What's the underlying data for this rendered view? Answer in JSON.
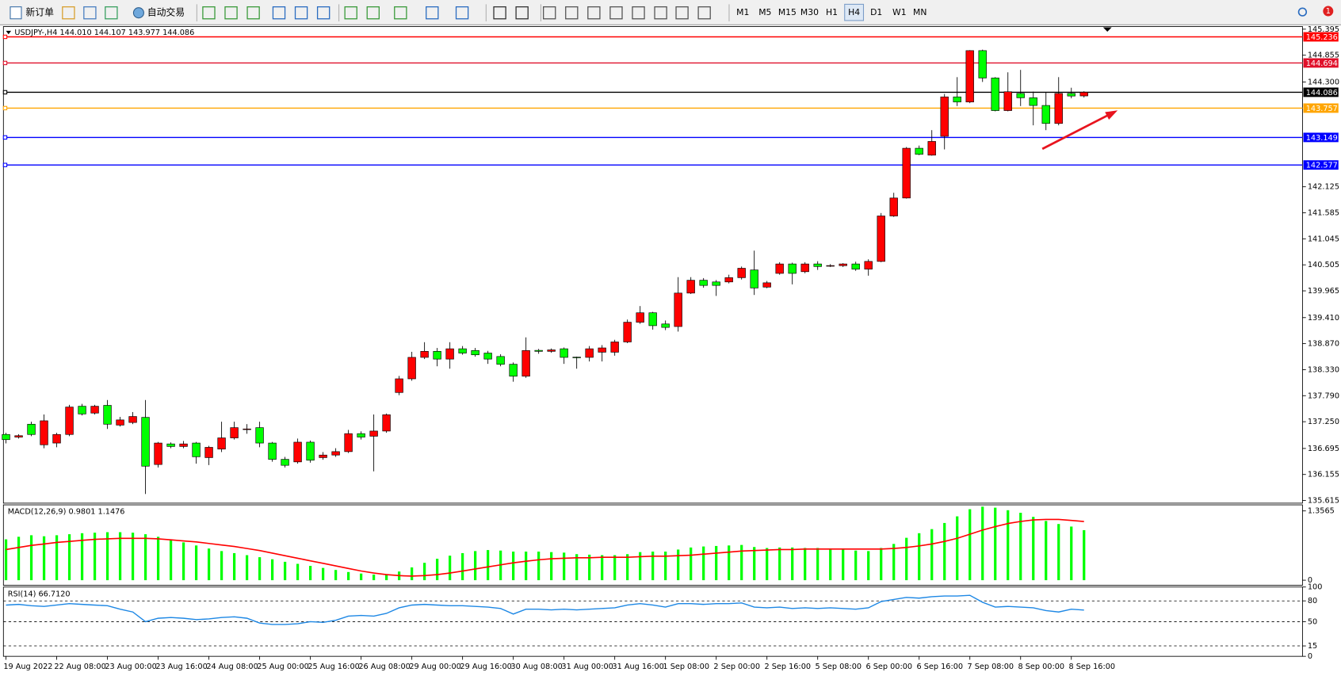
{
  "toolbar": {
    "new_order": "新订单",
    "auto_trading": "自动交易",
    "timeframes": [
      "M1",
      "M5",
      "M15",
      "M30",
      "H1",
      "H4",
      "D1",
      "W1",
      "MN"
    ],
    "active_timeframe": "H4",
    "notification_count": 1
  },
  "chart_data": [
    {
      "type": "candlestick",
      "title": "USDJPY-,H4  144.010 144.107 143.977 144.086",
      "x": [
        "19 Aug 2022",
        null,
        null,
        null,
        "22 Aug 08:00",
        null,
        null,
        null,
        "23 Aug 00:00",
        null,
        null,
        null,
        "23 Aug 16:00",
        null,
        null,
        null,
        "24 Aug 08:00",
        null,
        null,
        null,
        "25 Aug 00:00",
        null,
        null,
        null,
        "25 Aug 16:00",
        null,
        null,
        null,
        "26 Aug 08:00",
        null,
        null,
        null,
        "29 Aug 00:00",
        null,
        null,
        null,
        "29 Aug 16:00",
        null,
        null,
        null,
        "30 Aug 08:00",
        null,
        null,
        null,
        "31 Aug 00:00",
        null,
        null,
        null,
        "31 Aug 16:00",
        null,
        null,
        null,
        "1 Sep 08:00",
        null,
        null,
        null,
        "2 Sep 00:00",
        null,
        null,
        null,
        "2 Sep 16:00",
        null,
        null,
        null,
        "5 Sep 08:00",
        null,
        null,
        null,
        "6 Sep 00:00",
        null,
        null,
        null,
        "6 Sep 16:00",
        null,
        null,
        null,
        "7 Sep 08:00",
        null,
        null,
        null,
        "8 Sep 00:00",
        null,
        null,
        null,
        "8 Sep 16:00",
        null
      ],
      "open": [
        136.985,
        136.93,
        137.198,
        136.771,
        136.807,
        136.985,
        137.571,
        137.429,
        137.589,
        137.18,
        137.234,
        137.34,
        136.362,
        136.789,
        136.736,
        136.807,
        136.505,
        136.682,
        136.914,
        137.09,
        137.127,
        136.807,
        136.469,
        136.416,
        136.825,
        136.505,
        136.558,
        136.629,
        137.002,
        136.949,
        137.056,
        137.856,
        138.14,
        138.585,
        138.71,
        138.549,
        138.763,
        138.727,
        138.674,
        138.603,
        138.442,
        138.194,
        138.73,
        138.71,
        138.763,
        138.59,
        138.585,
        138.692,
        138.692,
        138.905,
        139.314,
        139.51,
        139.278,
        139.225,
        139.919,
        140.185,
        140.15,
        140.15,
        140.239,
        140.399,
        140.043,
        140.328,
        140.523,
        140.363,
        140.523,
        140.48,
        140.488,
        140.523,
        140.416,
        140.576,
        141.519,
        141.892,
        142.924,
        142.781,
        143.172,
        143.99,
        143.884,
        144.95,
        144.382,
        143.706,
        144.061,
        143.972,
        143.812,
        143.439,
        144.061,
        144.01
      ],
      "high": [
        137.02,
        136.99,
        137.25,
        137.4,
        137.02,
        137.6,
        137.62,
        137.6,
        137.7,
        137.35,
        137.45,
        137.7,
        136.83,
        136.82,
        136.85,
        136.83,
        136.75,
        137.25,
        137.25,
        137.2,
        137.25,
        136.83,
        136.52,
        136.9,
        136.86,
        136.62,
        136.7,
        137.08,
        137.05,
        137.4,
        137.42,
        138.2,
        138.7,
        138.9,
        138.78,
        138.9,
        138.82,
        138.78,
        138.72,
        138.65,
        138.48,
        139.0,
        138.76,
        138.77,
        138.79,
        138.6,
        138.82,
        138.84,
        138.95,
        139.37,
        139.65,
        139.53,
        139.35,
        140.25,
        140.25,
        140.23,
        140.19,
        140.3,
        140.47,
        140.8,
        140.17,
        140.56,
        140.55,
        140.56,
        140.58,
        140.52,
        140.54,
        140.57,
        140.62,
        141.58,
        142.0,
        142.95,
        142.98,
        143.3,
        144.05,
        144.4,
        144.96,
        144.97,
        144.4,
        144.5,
        144.55,
        144.1,
        144.08,
        144.4,
        144.18,
        144.107
      ],
      "low": [
        136.8,
        136.9,
        136.95,
        136.7,
        136.72,
        136.95,
        137.38,
        137.4,
        137.1,
        137.15,
        137.2,
        135.75,
        136.3,
        136.7,
        136.7,
        136.38,
        136.35,
        136.62,
        136.88,
        137.0,
        136.72,
        136.42,
        136.3,
        136.38,
        136.4,
        136.46,
        136.52,
        136.6,
        136.88,
        136.22,
        137.02,
        137.8,
        138.1,
        138.55,
        138.4,
        138.35,
        138.64,
        138.6,
        138.45,
        138.4,
        138.08,
        138.16,
        138.66,
        138.68,
        138.45,
        138.35,
        138.5,
        138.5,
        138.62,
        138.88,
        139.28,
        139.16,
        139.15,
        139.12,
        139.9,
        140.03,
        139.86,
        140.12,
        140.2,
        139.88,
        140.02,
        140.3,
        140.1,
        140.33,
        140.4,
        140.46,
        140.46,
        140.38,
        140.28,
        140.56,
        141.5,
        141.88,
        142.78,
        142.77,
        142.9,
        143.8,
        143.86,
        144.3,
        143.69,
        143.69,
        143.8,
        143.4,
        143.3,
        143.4,
        143.96,
        143.977
      ],
      "close": [
        136.878,
        136.96,
        136.985,
        137.269,
        136.985,
        137.554,
        137.411,
        137.571,
        137.198,
        137.287,
        137.358,
        136.327,
        136.807,
        136.736,
        136.789,
        136.523,
        136.718,
        136.914,
        137.127,
        137.1,
        136.807,
        136.469,
        136.345,
        136.825,
        136.451,
        136.558,
        136.629,
        137.002,
        136.931,
        137.056,
        137.394,
        138.14,
        138.585,
        138.71,
        138.549,
        138.763,
        138.674,
        138.638,
        138.549,
        138.442,
        138.194,
        138.727,
        138.71,
        138.74,
        138.585,
        138.58,
        138.763,
        138.781,
        138.905,
        139.314,
        139.51,
        139.243,
        139.207,
        139.919,
        140.185,
        140.078,
        140.078,
        140.239,
        140.434,
        140.025,
        140.132,
        140.523,
        140.328,
        140.523,
        140.47,
        140.49,
        140.523,
        140.416,
        140.576,
        141.519,
        141.892,
        142.924,
        142.799,
        143.066,
        143.99,
        143.884,
        144.95,
        144.382,
        143.706,
        144.097,
        143.972,
        143.812,
        143.439,
        144.061,
        144.008,
        144.086
      ],
      "up_color": "#ff0000",
      "down_color": "#00ff00",
      "ylim": [
        135.56,
        145.45
      ],
      "yticks": [
        145.395,
        144.855,
        {
          "value": 144.3,
          "label": "144.300"
        },
        142.125,
        141.585,
        141.045,
        140.505,
        139.965,
        {
          "value": 139.41,
          "label": "139.410"
        },
        {
          "value": 138.87,
          "label": "138.870"
        },
        {
          "value": 138.33,
          "label": "138.330"
        },
        {
          "value": 137.79,
          "label": "137.790"
        },
        {
          "value": 137.25,
          "label": "137.250"
        },
        136.695,
        136.155,
        135.615
      ],
      "levels": [
        {
          "value": 145.236,
          "color": "#ff0000"
        },
        {
          "value": 144.694,
          "color": "#e0102a"
        },
        {
          "value": 144.086,
          "color": "#000000"
        },
        {
          "value": 143.757,
          "color": "#ffa500"
        },
        {
          "value": 143.149,
          "color": "#0000ff"
        },
        {
          "value": 142.577,
          "color": "#0000ff"
        }
      ]
    },
    {
      "type": "macd",
      "title": "MACD(12,26,9) 0.9801 1.1476",
      "histogram": {
        "color": "#00ff00",
        "values": [
          0.8,
          0.85,
          0.88,
          0.86,
          0.88,
          0.9,
          0.92,
          0.93,
          0.94,
          0.94,
          0.93,
          0.9,
          0.85,
          0.8,
          0.74,
          0.68,
          0.62,
          0.57,
          0.53,
          0.49,
          0.45,
          0.41,
          0.36,
          0.32,
          0.28,
          0.24,
          0.2,
          0.16,
          0.13,
          0.11,
          0.12,
          0.17,
          0.25,
          0.34,
          0.42,
          0.48,
          0.53,
          0.57,
          0.59,
          0.58,
          0.56,
          0.56,
          0.56,
          0.55,
          0.54,
          0.51,
          0.5,
          0.49,
          0.49,
          0.51,
          0.55,
          0.56,
          0.56,
          0.6,
          0.64,
          0.66,
          0.67,
          0.68,
          0.69,
          0.65,
          0.63,
          0.64,
          0.64,
          0.63,
          0.63,
          0.62,
          0.6,
          0.58,
          0.57,
          0.63,
          0.71,
          0.83,
          0.92,
          1.0,
          1.12,
          1.25,
          1.39,
          1.44,
          1.42,
          1.37,
          1.32,
          1.24,
          1.16,
          1.1,
          1.05,
          0.9801
        ]
      },
      "signal": {
        "color": "#ff0000",
        "values": [
          0.6,
          0.64,
          0.68,
          0.71,
          0.74,
          0.76,
          0.78,
          0.8,
          0.81,
          0.82,
          0.82,
          0.82,
          0.81,
          0.79,
          0.77,
          0.75,
          0.72,
          0.69,
          0.66,
          0.62,
          0.58,
          0.53,
          0.48,
          0.43,
          0.38,
          0.33,
          0.28,
          0.23,
          0.18,
          0.14,
          0.11,
          0.09,
          0.08,
          0.09,
          0.11,
          0.14,
          0.18,
          0.22,
          0.26,
          0.3,
          0.34,
          0.37,
          0.4,
          0.42,
          0.43,
          0.44,
          0.44,
          0.45,
          0.45,
          0.45,
          0.46,
          0.47,
          0.47,
          0.48,
          0.49,
          0.51,
          0.53,
          0.55,
          0.57,
          0.58,
          0.59,
          0.6,
          0.6,
          0.61,
          0.61,
          0.61,
          0.61,
          0.61,
          0.61,
          0.61,
          0.62,
          0.64,
          0.67,
          0.71,
          0.76,
          0.82,
          0.9,
          0.98,
          1.05,
          1.11,
          1.15,
          1.18,
          1.19,
          1.19,
          1.17,
          1.1476
        ]
      },
      "ylim": [
        -0.1,
        1.475
      ],
      "yticks": [
        1.3565,
        0
      ]
    },
    {
      "type": "line",
      "title": "RSI(14) 66.7120",
      "color": "#1e88e5",
      "values": [
        74,
        75,
        73,
        72,
        74,
        76,
        75,
        74,
        73,
        68,
        64,
        50,
        55,
        56,
        55,
        53,
        54,
        56,
        57,
        55,
        48,
        46,
        46,
        47,
        50,
        49,
        52,
        58,
        59,
        58,
        62,
        70,
        74,
        75,
        74,
        73,
        73,
        72,
        71,
        69,
        61,
        68,
        68,
        67,
        68,
        67,
        68,
        69,
        70,
        74,
        76,
        74,
        71,
        76,
        76,
        75,
        76,
        76,
        77,
        71,
        70,
        71,
        69,
        70,
        69,
        70,
        69,
        68,
        70,
        79,
        82,
        85,
        84,
        86,
        87,
        87,
        88,
        78,
        71,
        72,
        71,
        70,
        66,
        64,
        68,
        66.712
      ],
      "ylim": [
        0,
        100
      ],
      "yticks": [
        100,
        80,
        50,
        15,
        0
      ],
      "levels": [
        80,
        50,
        15
      ]
    }
  ]
}
